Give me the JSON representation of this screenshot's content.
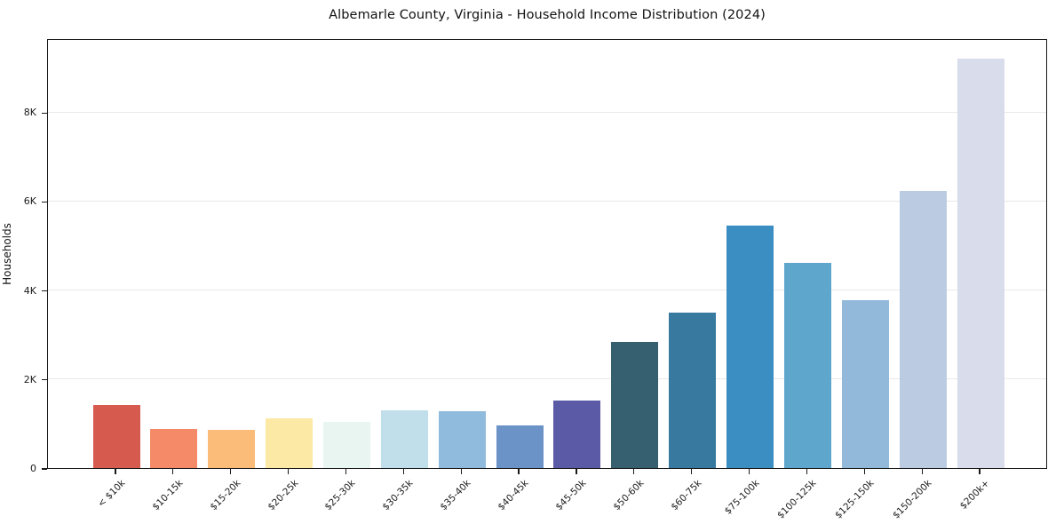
{
  "chart_data": {
    "type": "bar",
    "title": "Albemarle County, Virginia - Household Income Distribution (2024)",
    "xlabel": "",
    "ylabel": "Households",
    "categories": [
      "< $10k",
      "$10-15k",
      "$15-20k",
      "$20-25k",
      "$25-30k",
      "$30-35k",
      "$35-40k",
      "$40-45k",
      "$45-50k",
      "$50-60k",
      "$60-75k",
      "$75-100k",
      "$100-125k",
      "$125-150k",
      "$150-200k",
      "$200k+"
    ],
    "values": [
      1420,
      870,
      850,
      1110,
      1030,
      1290,
      1270,
      960,
      1510,
      2830,
      3500,
      5440,
      4620,
      3770,
      6220,
      9210
    ],
    "bar_colors": [
      "#d65a4e",
      "#f48a68",
      "#fabc78",
      "#fde9a6",
      "#e9f5f0",
      "#c0dfea",
      "#91bbdc",
      "#6b93c7",
      "#5b5aa7",
      "#365f70",
      "#38799f",
      "#3a8ec2",
      "#5ea6cb",
      "#92b8da",
      "#bacbe2",
      "#d9dcea"
    ],
    "yticks": [
      {
        "value": 0,
        "label": "0"
      },
      {
        "value": 2000,
        "label": "2K"
      },
      {
        "value": 4000,
        "label": "4K"
      },
      {
        "value": 6000,
        "label": "6K"
      },
      {
        "value": 8000,
        "label": "8K"
      }
    ],
    "ylim": [
      0,
      9660
    ],
    "grid": "horizontal",
    "legend": "none",
    "grid_color": "#e9e9e9",
    "axis_color": "#1a1a1a",
    "background_color": "#ffffff"
  }
}
